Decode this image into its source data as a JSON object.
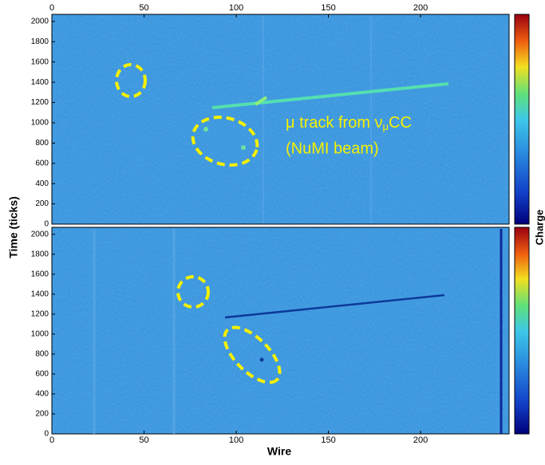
{
  "chart_data": [
    {
      "type": "heatmap",
      "xlim": [
        0,
        248
      ],
      "xticks": [
        0,
        50,
        100,
        150,
        200
      ],
      "ylim": [
        0,
        2070
      ],
      "yticks": [
        0,
        200,
        400,
        600,
        800,
        1000,
        1200,
        1400,
        1600,
        1800,
        2000
      ],
      "ylabel": "Time (ticks)",
      "colorbar_label": "Charge",
      "annotation": {
        "prefix": "μ track from ν",
        "subscript": "μ",
        "suffix": "CC",
        "line2": "(NuMI beam)"
      }
    },
    {
      "type": "heatmap",
      "xlim": [
        0,
        248
      ],
      "xticks": [
        0,
        50,
        100,
        150,
        200
      ],
      "ylim": [
        0,
        2070
      ],
      "yticks": [
        0,
        200,
        400,
        600,
        800,
        1000,
        1200,
        1400,
        1600,
        1800,
        2000
      ],
      "xlabel": "Wire"
    }
  ]
}
